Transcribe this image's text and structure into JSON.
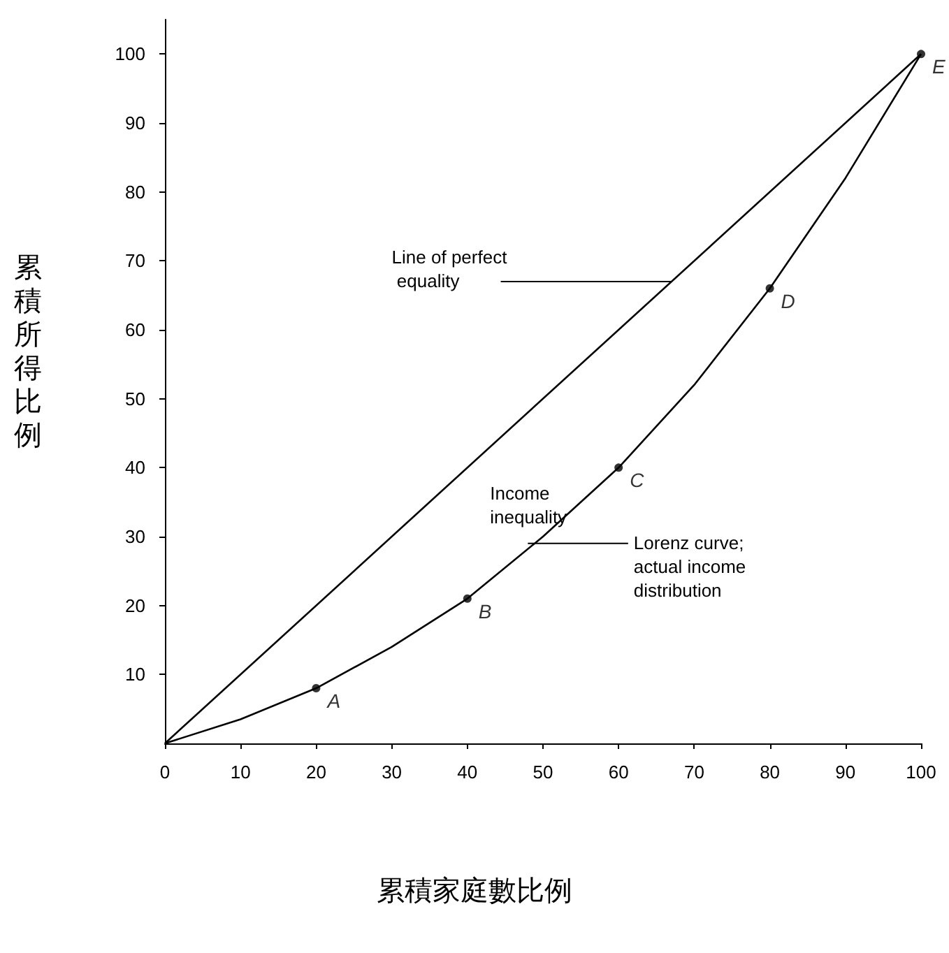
{
  "chart_data": {
    "type": "line",
    "xlabel": "累積家庭數比例",
    "ylabel": "累積所得比例",
    "xlim": [
      0,
      100
    ],
    "ylim": [
      0,
      105
    ],
    "xticks": [
      0,
      10,
      20,
      30,
      40,
      50,
      60,
      70,
      80,
      90,
      100
    ],
    "yticks": [
      10,
      20,
      30,
      40,
      50,
      60,
      70,
      80,
      90,
      100
    ],
    "grid": false,
    "line_style": "solid",
    "series": [
      {
        "color": "#000000",
        "x": [
          0,
          100
        ],
        "values": [
          0,
          100
        ]
      },
      {
        "color": "#000000",
        "x": [
          0,
          10,
          20,
          30,
          40,
          50,
          60,
          70,
          80,
          90,
          100
        ],
        "values": [
          0,
          3.5,
          8,
          14,
          21,
          30,
          40,
          52,
          66,
          82,
          100
        ]
      },
      {
        "type": "scatter",
        "color": "#000000",
        "x": [
          20,
          40,
          60,
          80,
          100
        ],
        "values": [
          8,
          21,
          40,
          66,
          100
        ],
        "marker": "circle",
        "value_labels": [
          "A",
          "B",
          "C",
          "D",
          "E"
        ]
      }
    ],
    "annotations": [
      {
        "text": "Line of perfect equality",
        "x": 67,
        "y": 67
      },
      "Income inequality",
      {
        "text": "Lorenz curve; actual income distribution",
        "x": 48,
        "y": 29
      }
    ]
  }
}
